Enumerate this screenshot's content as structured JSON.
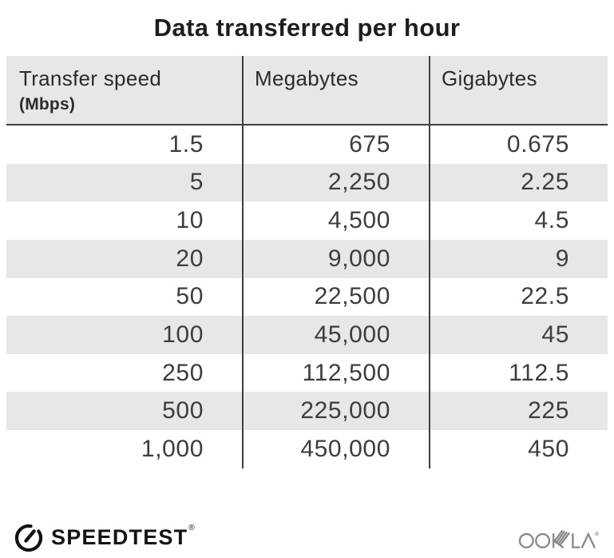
{
  "title": "Data transferred per hour",
  "table": {
    "columns": [
      {
        "label": "Transfer speed",
        "sublabel": "(Mbps)"
      },
      {
        "label": "Megabytes"
      },
      {
        "label": "Gigabytes"
      }
    ],
    "rows": [
      [
        "1.5",
        "675",
        "0.675"
      ],
      [
        "5",
        "2,250",
        "2.25"
      ],
      [
        "10",
        "4,500",
        "4.5"
      ],
      [
        "20",
        "9,000",
        "9"
      ],
      [
        "50",
        "22,500",
        "22.5"
      ],
      [
        "100",
        "45,000",
        "45"
      ],
      [
        "250",
        "112,500",
        "112.5"
      ],
      [
        "500",
        "225,000",
        "225"
      ],
      [
        "1,000",
        "450,000",
        "450"
      ]
    ]
  },
  "footer": {
    "speedtest_label": "SPEEDTEST",
    "speedtest_trademark": "®",
    "ookla_label": "OOKLA"
  },
  "colors": {
    "stripe_bg": "#e8e7e7",
    "divider": "#3f3f3f",
    "title_text": "#1e1e1e",
    "cell_text": "#3d3d3d",
    "brand_black": "#141414",
    "ookla_gray": "#8a8888"
  }
}
